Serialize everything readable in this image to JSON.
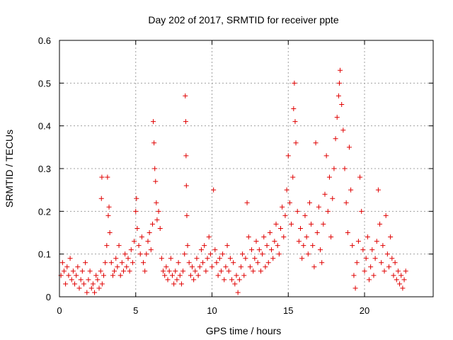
{
  "chart_data": {
    "type": "scatter",
    "title": "Day 202 of 2017, SRMTID for receiver ppte",
    "xlabel": "GPS time / hours",
    "ylabel": "SRMTID / TECUs",
    "xlim": [
      0,
      24.5
    ],
    "ylim": [
      0,
      0.6
    ],
    "xticks": [
      0,
      5,
      10,
      15,
      20
    ],
    "yticks": [
      0,
      0.1,
      0.2,
      0.3,
      0.4,
      0.5,
      0.6
    ],
    "xtick_labels": [
      "0",
      "5",
      "10",
      "15",
      "20"
    ],
    "ytick_labels": [
      "0",
      "0.1",
      "0.2",
      "0.3",
      "0.4",
      "0.5",
      "0.6"
    ],
    "grid": true,
    "marker": "+",
    "color": "#e00000",
    "series": [
      {
        "name": "SRMTID",
        "points": [
          [
            0.1,
            0.05
          ],
          [
            0.2,
            0.08
          ],
          [
            0.3,
            0.06
          ],
          [
            0.4,
            0.03
          ],
          [
            0.5,
            0.07
          ],
          [
            0.6,
            0.05
          ],
          [
            0.7,
            0.09
          ],
          [
            0.8,
            0.04
          ],
          [
            0.9,
            0.06
          ],
          [
            1.0,
            0.03
          ],
          [
            1.1,
            0.05
          ],
          [
            1.2,
            0.07
          ],
          [
            1.3,
            0.02
          ],
          [
            1.4,
            0.04
          ],
          [
            1.5,
            0.06
          ],
          [
            1.6,
            0.03
          ],
          [
            1.7,
            0.08
          ],
          [
            1.8,
            0.01
          ],
          [
            1.9,
            0.04
          ],
          [
            2.0,
            0.06
          ],
          [
            2.1,
            0.02
          ],
          [
            2.2,
            0.03
          ],
          [
            2.3,
            0.01
          ],
          [
            2.4,
            0.05
          ],
          [
            2.5,
            0.04
          ],
          [
            2.6,
            0.02
          ],
          [
            2.7,
            0.06
          ],
          [
            2.75,
            0.23
          ],
          [
            2.78,
            0.28
          ],
          [
            2.8,
            0.03
          ],
          [
            2.9,
            0.05
          ],
          [
            3.0,
            0.08
          ],
          [
            3.1,
            0.12
          ],
          [
            3.15,
            0.28
          ],
          [
            3.2,
            0.19
          ],
          [
            3.25,
            0.21
          ],
          [
            3.3,
            0.15
          ],
          [
            3.4,
            0.08
          ],
          [
            3.5,
            0.05
          ],
          [
            3.6,
            0.06
          ],
          [
            3.7,
            0.09
          ],
          [
            3.8,
            0.07
          ],
          [
            3.9,
            0.12
          ],
          [
            4.0,
            0.05
          ],
          [
            4.1,
            0.08
          ],
          [
            4.2,
            0.06
          ],
          [
            4.3,
            0.1
          ],
          [
            4.4,
            0.07
          ],
          [
            4.5,
            0.09
          ],
          [
            4.6,
            0.06
          ],
          [
            4.7,
            0.11
          ],
          [
            4.8,
            0.08
          ],
          [
            4.9,
            0.13
          ],
          [
            5.0,
            0.2
          ],
          [
            5.05,
            0.23
          ],
          [
            5.1,
            0.16
          ],
          [
            5.2,
            0.12
          ],
          [
            5.3,
            0.1
          ],
          [
            5.4,
            0.14
          ],
          [
            5.5,
            0.08
          ],
          [
            5.6,
            0.06
          ],
          [
            5.7,
            0.1
          ],
          [
            5.8,
            0.13
          ],
          [
            5.9,
            0.15
          ],
          [
            6.0,
            0.11
          ],
          [
            6.1,
            0.17
          ],
          [
            6.15,
            0.41
          ],
          [
            6.2,
            0.36
          ],
          [
            6.25,
            0.3
          ],
          [
            6.3,
            0.27
          ],
          [
            6.35,
            0.22
          ],
          [
            6.4,
            0.18
          ],
          [
            6.5,
            0.2
          ],
          [
            6.6,
            0.16
          ],
          [
            6.7,
            0.09
          ],
          [
            6.8,
            0.06
          ],
          [
            6.9,
            0.05
          ],
          [
            7.0,
            0.07
          ],
          [
            7.1,
            0.04
          ],
          [
            7.2,
            0.06
          ],
          [
            7.3,
            0.09
          ],
          [
            7.4,
            0.05
          ],
          [
            7.5,
            0.03
          ],
          [
            7.6,
            0.06
          ],
          [
            7.7,
            0.04
          ],
          [
            7.8,
            0.08
          ],
          [
            7.9,
            0.05
          ],
          [
            8.0,
            0.03
          ],
          [
            8.1,
            0.06
          ],
          [
            8.2,
            0.1
          ],
          [
            8.25,
            0.47
          ],
          [
            8.28,
            0.41
          ],
          [
            8.3,
            0.33
          ],
          [
            8.32,
            0.26
          ],
          [
            8.35,
            0.19
          ],
          [
            8.4,
            0.12
          ],
          [
            8.5,
            0.08
          ],
          [
            8.6,
            0.05
          ],
          [
            8.7,
            0.07
          ],
          [
            8.8,
            0.04
          ],
          [
            8.9,
            0.06
          ],
          [
            9.0,
            0.09
          ],
          [
            9.1,
            0.05
          ],
          [
            9.2,
            0.07
          ],
          [
            9.3,
            0.11
          ],
          [
            9.4,
            0.08
          ],
          [
            9.5,
            0.12
          ],
          [
            9.6,
            0.06
          ],
          [
            9.7,
            0.09
          ],
          [
            9.8,
            0.14
          ],
          [
            9.9,
            0.1
          ],
          [
            10.0,
            0.07
          ],
          [
            10.1,
            0.25
          ],
          [
            10.2,
            0.11
          ],
          [
            10.3,
            0.08
          ],
          [
            10.4,
            0.05
          ],
          [
            10.5,
            0.09
          ],
          [
            10.6,
            0.06
          ],
          [
            10.7,
            0.1
          ],
          [
            10.8,
            0.04
          ],
          [
            10.9,
            0.07
          ],
          [
            11.0,
            0.12
          ],
          [
            11.1,
            0.06
          ],
          [
            11.2,
            0.09
          ],
          [
            11.3,
            0.04
          ],
          [
            11.4,
            0.08
          ],
          [
            11.5,
            0.03
          ],
          [
            11.6,
            0.05
          ],
          [
            11.7,
            0.01
          ],
          [
            11.8,
            0.04
          ],
          [
            11.9,
            0.07
          ],
          [
            12.0,
            0.1
          ],
          [
            12.1,
            0.05
          ],
          [
            12.2,
            0.09
          ],
          [
            12.3,
            0.22
          ],
          [
            12.4,
            0.14
          ],
          [
            12.5,
            0.07
          ],
          [
            12.6,
            0.11
          ],
          [
            12.7,
            0.06
          ],
          [
            12.8,
            0.09
          ],
          [
            12.9,
            0.13
          ],
          [
            13.0,
            0.08
          ],
          [
            13.1,
            0.11
          ],
          [
            13.2,
            0.06
          ],
          [
            13.3,
            0.1
          ],
          [
            13.4,
            0.14
          ],
          [
            13.5,
            0.07
          ],
          [
            13.6,
            0.12
          ],
          [
            13.7,
            0.08
          ],
          [
            13.8,
            0.15
          ],
          [
            13.9,
            0.11
          ],
          [
            14.0,
            0.09
          ],
          [
            14.1,
            0.13
          ],
          [
            14.2,
            0.17
          ],
          [
            14.3,
            0.12
          ],
          [
            14.4,
            0.1
          ],
          [
            14.5,
            0.16
          ],
          [
            14.6,
            0.21
          ],
          [
            14.7,
            0.14
          ],
          [
            14.8,
            0.19
          ],
          [
            14.9,
            0.25
          ],
          [
            15.0,
            0.33
          ],
          [
            15.1,
            0.22
          ],
          [
            15.2,
            0.17
          ],
          [
            15.3,
            0.28
          ],
          [
            15.35,
            0.44
          ],
          [
            15.4,
            0.5
          ],
          [
            15.45,
            0.41
          ],
          [
            15.5,
            0.36
          ],
          [
            15.6,
            0.2
          ],
          [
            15.7,
            0.13
          ],
          [
            15.8,
            0.16
          ],
          [
            15.9,
            0.09
          ],
          [
            16.0,
            0.12
          ],
          [
            16.1,
            0.19
          ],
          [
            16.2,
            0.14
          ],
          [
            16.3,
            0.1
          ],
          [
            16.4,
            0.22
          ],
          [
            16.5,
            0.17
          ],
          [
            16.6,
            0.12
          ],
          [
            16.7,
            0.07
          ],
          [
            16.8,
            0.36
          ],
          [
            16.9,
            0.15
          ],
          [
            17.0,
            0.21
          ],
          [
            17.1,
            0.11
          ],
          [
            17.2,
            0.08
          ],
          [
            17.3,
            0.17
          ],
          [
            17.4,
            0.24
          ],
          [
            17.5,
            0.33
          ],
          [
            17.6,
            0.2
          ],
          [
            17.7,
            0.28
          ],
          [
            17.8,
            0.14
          ],
          [
            17.9,
            0.23
          ],
          [
            18.0,
            0.3
          ],
          [
            18.1,
            0.37
          ],
          [
            18.2,
            0.42
          ],
          [
            18.3,
            0.47
          ],
          [
            18.35,
            0.5
          ],
          [
            18.4,
            0.53
          ],
          [
            18.5,
            0.45
          ],
          [
            18.6,
            0.39
          ],
          [
            18.7,
            0.3
          ],
          [
            18.8,
            0.22
          ],
          [
            18.9,
            0.15
          ],
          [
            19.0,
            0.35
          ],
          [
            19.1,
            0.25
          ],
          [
            19.2,
            0.12
          ],
          [
            19.3,
            0.05
          ],
          [
            19.4,
            0.02
          ],
          [
            19.5,
            0.08
          ],
          [
            19.6,
            0.13
          ],
          [
            19.7,
            0.28
          ],
          [
            19.8,
            0.2
          ],
          [
            19.9,
            0.11
          ],
          [
            20.0,
            0.06
          ],
          [
            20.1,
            0.09
          ],
          [
            20.2,
            0.14
          ],
          [
            20.3,
            0.04
          ],
          [
            20.4,
            0.07
          ],
          [
            20.5,
            0.11
          ],
          [
            20.6,
            0.05
          ],
          [
            20.7,
            0.09
          ],
          [
            20.8,
            0.13
          ],
          [
            20.9,
            0.25
          ],
          [
            21.0,
            0.17
          ],
          [
            21.1,
            0.08
          ],
          [
            21.2,
            0.12
          ],
          [
            21.3,
            0.06
          ],
          [
            21.4,
            0.19
          ],
          [
            21.5,
            0.1
          ],
          [
            21.6,
            0.07
          ],
          [
            21.7,
            0.14
          ],
          [
            21.8,
            0.09
          ],
          [
            21.9,
            0.05
          ],
          [
            22.0,
            0.08
          ],
          [
            22.1,
            0.04
          ],
          [
            22.2,
            0.06
          ],
          [
            22.3,
            0.03
          ],
          [
            22.4,
            0.05
          ],
          [
            22.5,
            0.02
          ],
          [
            22.6,
            0.04
          ],
          [
            22.7,
            0.06
          ]
        ]
      }
    ]
  }
}
